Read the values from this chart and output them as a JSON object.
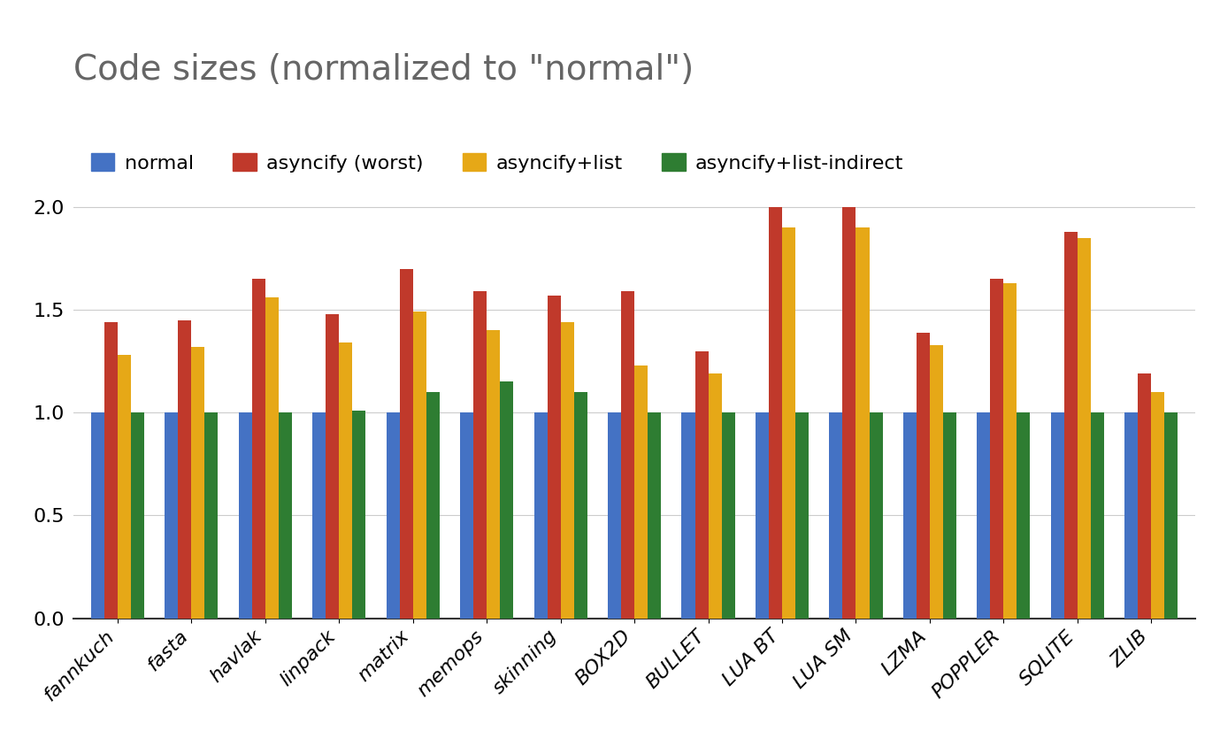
{
  "title": "Code sizes (normalized to \"normal\")",
  "categories": [
    "fannkuch",
    "fasta",
    "havlak",
    "linpack",
    "matrix",
    "memops",
    "skinning",
    "BOX2D",
    "BULLET",
    "LUA BT",
    "LUA SM",
    "LZMA",
    "POPPLER",
    "SQLITE",
    "ZLIB"
  ],
  "series": {
    "normal": [
      1.0,
      1.0,
      1.0,
      1.0,
      1.0,
      1.0,
      1.0,
      1.0,
      1.0,
      1.0,
      1.0,
      1.0,
      1.0,
      1.0,
      1.0
    ],
    "asyncify (worst)": [
      1.44,
      1.45,
      1.65,
      1.48,
      1.7,
      1.59,
      1.57,
      1.59,
      1.3,
      2.0,
      2.0,
      1.39,
      1.65,
      1.88,
      1.19
    ],
    "asyncify+list": [
      1.28,
      1.32,
      1.56,
      1.34,
      1.49,
      1.4,
      1.44,
      1.23,
      1.19,
      1.9,
      1.9,
      1.33,
      1.63,
      1.85,
      1.1
    ],
    "asyncify+list-indirect": [
      1.0,
      1.0,
      1.0,
      1.01,
      1.1,
      1.15,
      1.1,
      1.0,
      1.0,
      1.0,
      1.0,
      1.0,
      1.0,
      1.0,
      1.0
    ]
  },
  "colors": {
    "normal": "#4472C4",
    "asyncify (worst)": "#C0392B",
    "asyncify+list": "#E6A817",
    "asyncify+list-indirect": "#2E7D32"
  },
  "ylim": [
    0,
    2.2
  ],
  "yticks": [
    0,
    0.5,
    1,
    1.5,
    2
  ],
  "background_color": "#ffffff",
  "title_fontsize": 28,
  "legend_fontsize": 16,
  "tick_fontsize": 16,
  "bar_width": 0.18
}
